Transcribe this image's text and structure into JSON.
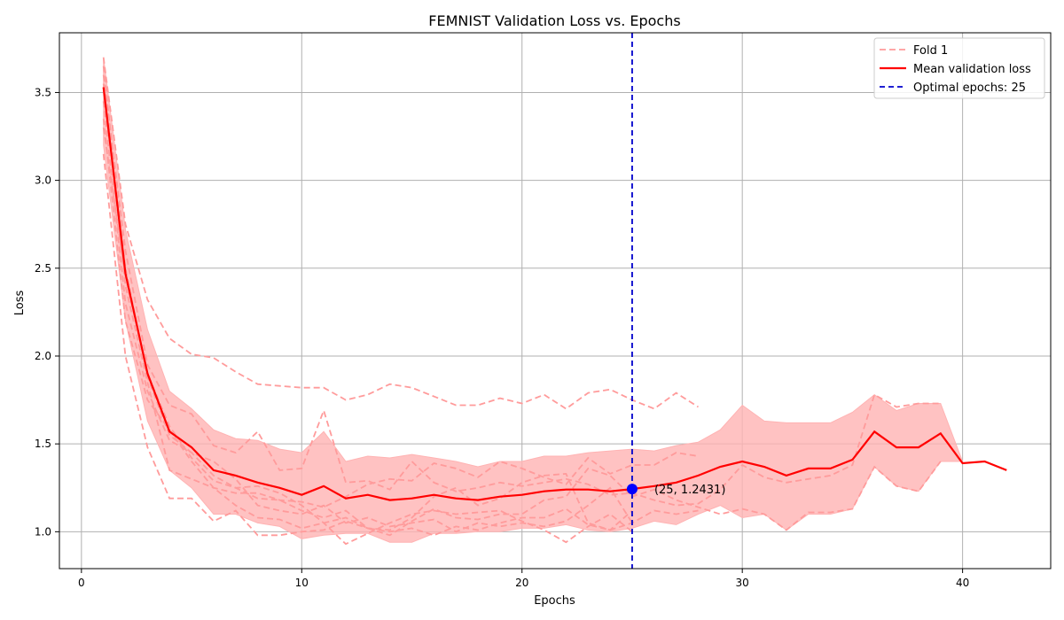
{
  "chart_data": {
    "type": "line",
    "title": "FEMNIST Validation Loss vs. Epochs",
    "xlabel": "Epochs",
    "ylabel": "Loss",
    "xlim": [
      -1,
      44
    ],
    "ylim": [
      0.79,
      3.84
    ],
    "xticks": [
      0,
      10,
      20,
      30,
      40
    ],
    "yticks": [
      1.0,
      1.5,
      2.0,
      2.5,
      3.0,
      3.5
    ],
    "xtick_labels": [
      "0",
      "10",
      "20",
      "30",
      "40"
    ],
    "ytick_labels": [
      "1.0",
      "1.5",
      "2.0",
      "2.5",
      "3.0",
      "3.5"
    ],
    "grid": true,
    "legend_position": "top-right",
    "legend": [
      {
        "label": "Fold 1",
        "style": "dashed-light"
      },
      {
        "label": "Mean validation loss",
        "style": "solid"
      },
      {
        "label": "Optimal epochs: 25",
        "style": "dashed-blue"
      }
    ],
    "colors": {
      "fold": "#ff9b9b",
      "mean": "#ff0000",
      "band": "#ffb3b3",
      "optimal": "#0000cc",
      "point": "#0000ff"
    },
    "folds": [
      {
        "x": [
          1,
          2,
          3,
          4,
          5,
          6,
          7,
          8,
          9,
          10,
          11,
          12,
          13,
          14,
          15,
          16,
          17,
          18,
          19,
          20,
          21,
          22,
          23,
          24,
          25,
          26,
          27,
          28
        ],
        "y": [
          3.7,
          2.75,
          2.32,
          2.1,
          2.01,
          1.99,
          1.91,
          1.84,
          1.83,
          1.82,
          1.82,
          1.75,
          1.78,
          1.84,
          1.82,
          1.77,
          1.72,
          1.72,
          1.76,
          1.73,
          1.78,
          1.7,
          1.79,
          1.81,
          1.75,
          1.7,
          1.79,
          1.71
        ]
      },
      {
        "x": [
          1,
          2,
          3,
          4,
          5,
          6,
          7,
          8,
          9,
          10,
          11,
          12,
          13,
          14,
          15,
          16,
          17,
          18,
          19,
          20,
          21,
          22,
          23,
          24,
          25,
          26,
          27,
          28,
          29,
          30,
          31,
          32,
          33,
          34,
          35,
          36,
          37,
          38,
          39
        ],
        "y": [
          3.6,
          2.6,
          1.95,
          1.72,
          1.67,
          1.49,
          1.45,
          1.57,
          1.35,
          1.36,
          1.69,
          1.28,
          1.29,
          1.24,
          1.4,
          1.28,
          1.23,
          1.25,
          1.28,
          1.26,
          1.28,
          1.3,
          1.27,
          1.21,
          1.22,
          1.18,
          1.15,
          1.16,
          1.24,
          1.38,
          1.31,
          1.28,
          1.3,
          1.32,
          1.38,
          1.78,
          1.71,
          1.73,
          1.73
        ]
      },
      {
        "x": [
          1,
          2,
          3,
          4,
          5,
          6,
          7,
          8,
          9,
          10,
          11,
          12,
          13,
          14,
          15,
          16,
          17,
          18,
          19,
          20,
          21,
          22,
          23,
          24,
          25,
          26,
          27,
          28
        ],
        "y": [
          3.55,
          2.4,
          1.85,
          1.35,
          1.3,
          1.25,
          1.22,
          1.22,
          1.18,
          1.17,
          1.14,
          1.2,
          1.27,
          1.3,
          1.29,
          1.39,
          1.36,
          1.31,
          1.4,
          1.36,
          1.31,
          1.27,
          1.42,
          1.33,
          1.38,
          1.38,
          1.45,
          1.43
        ]
      },
      {
        "x": [
          1,
          2,
          3,
          4,
          5,
          6,
          7,
          8,
          9,
          10,
          11,
          12,
          13,
          14,
          15,
          16,
          17,
          18,
          19,
          20,
          21,
          22,
          23,
          24,
          25,
          26,
          27,
          28,
          29,
          30,
          31,
          32,
          33,
          34,
          35,
          36,
          37,
          38,
          39
        ],
        "y": [
          3.45,
          2.3,
          1.8,
          1.52,
          1.45,
          1.32,
          1.25,
          1.19,
          1.18,
          1.12,
          1.08,
          1.12,
          1.02,
          0.98,
          1.06,
          1.13,
          1.08,
          1.07,
          1.1,
          1.1,
          1.18,
          1.2,
          1.36,
          1.32,
          1.2,
          1.24,
          1.18,
          1.14,
          1.1,
          1.13,
          1.1,
          1.01,
          1.11,
          1.11,
          1.13,
          1.37,
          1.26,
          1.23,
          1.4
        ]
      },
      {
        "x": [
          1,
          2,
          3,
          4,
          5,
          6,
          7,
          8,
          9,
          10,
          11,
          12,
          13,
          14,
          15,
          16,
          17,
          18,
          19,
          20,
          21,
          22,
          23,
          24,
          25,
          26,
          27,
          28
        ],
        "y": [
          3.35,
          2.2,
          1.75,
          1.58,
          1.4,
          1.25,
          1.15,
          1.08,
          1.07,
          1.02,
          1.05,
          1.08,
          1.02,
          1.0,
          1.02,
          0.98,
          1.03,
          1.01,
          1.05,
          1.08,
          1.08,
          1.13,
          1.04,
          1.01,
          1.05,
          1.12,
          1.1,
          1.12
        ]
      },
      {
        "x": [
          1,
          2,
          3,
          4,
          5,
          6,
          7,
          8,
          9,
          10,
          11,
          12,
          13,
          14,
          15,
          16,
          17,
          18,
          19,
          20,
          21,
          22,
          23,
          24,
          25
        ],
        "y": [
          3.3,
          2.45,
          1.9,
          1.6,
          1.42,
          1.29,
          1.25,
          1.26,
          1.22,
          1.15,
          1.05,
          0.93,
          0.99,
          1.05,
          1.1,
          1.12,
          1.1,
          1.11,
          1.12,
          1.06,
          1.01,
          0.94,
          1.03,
          1.1,
          1.0
        ]
      },
      {
        "x": [
          1,
          2,
          3,
          4,
          5,
          6,
          7,
          8,
          9,
          10,
          11,
          12,
          13,
          14,
          15,
          16,
          17,
          18,
          19,
          20,
          21,
          22,
          23,
          24,
          25
        ],
        "y": [
          3.15,
          2.0,
          1.48,
          1.19,
          1.19,
          1.06,
          1.12,
          0.98,
          0.98,
          1.0,
          1.01,
          1.06,
          1.02,
          1.01,
          1.08,
          1.2,
          1.25,
          1.15,
          1.19,
          1.28,
          1.32,
          1.33,
          1.05,
          1.01,
          1.12
        ]
      },
      {
        "x": [
          1,
          2,
          3,
          4,
          5,
          6,
          7,
          8,
          9,
          10,
          11,
          12,
          13,
          14,
          15,
          16,
          17,
          18,
          19,
          20,
          21,
          22,
          23,
          24,
          25
        ],
        "y": [
          3.65,
          2.5,
          1.88,
          1.55,
          1.45,
          1.4,
          1.3,
          1.15,
          1.12,
          1.1,
          1.15,
          1.05,
          1.08,
          1.03,
          1.05,
          1.07,
          1.0,
          1.05,
          1.03,
          1.05,
          1.03,
          1.06,
          1.15,
          1.25,
          1.05
        ]
      }
    ],
    "mean": {
      "name": "Mean validation loss",
      "x": [
        1,
        2,
        3,
        4,
        5,
        6,
        7,
        8,
        9,
        10,
        11,
        12,
        13,
        14,
        15,
        16,
        17,
        18,
        19,
        20,
        21,
        22,
        23,
        24,
        25,
        26,
        27,
        28,
        29,
        30,
        31,
        32,
        33,
        34,
        35,
        36,
        37,
        38,
        39,
        40,
        41,
        42
      ],
      "y": [
        3.53,
        2.47,
        1.9,
        1.57,
        1.48,
        1.35,
        1.32,
        1.28,
        1.25,
        1.21,
        1.26,
        1.19,
        1.21,
        1.18,
        1.19,
        1.21,
        1.19,
        1.18,
        1.2,
        1.21,
        1.23,
        1.24,
        1.24,
        1.23,
        1.243,
        1.26,
        1.28,
        1.32,
        1.37,
        1.4,
        1.37,
        1.32,
        1.36,
        1.36,
        1.41,
        1.57,
        1.48,
        1.48,
        1.56,
        1.39,
        1.4,
        1.35
      ]
    },
    "band": {
      "x": [
        1,
        2,
        3,
        4,
        5,
        6,
        7,
        8,
        9,
        10,
        11,
        12,
        13,
        14,
        15,
        16,
        17,
        18,
        19,
        20,
        21,
        22,
        23,
        24,
        25,
        26,
        27,
        28,
        29,
        30,
        31,
        32,
        33,
        34,
        35,
        36,
        37,
        38,
        39,
        40
      ],
      "upper": [
        3.7,
        2.72,
        2.15,
        1.8,
        1.7,
        1.58,
        1.53,
        1.52,
        1.47,
        1.45,
        1.57,
        1.4,
        1.43,
        1.42,
        1.44,
        1.42,
        1.4,
        1.37,
        1.4,
        1.4,
        1.43,
        1.43,
        1.45,
        1.46,
        1.47,
        1.46,
        1.49,
        1.51,
        1.58,
        1.72,
        1.63,
        1.62,
        1.62,
        1.62,
        1.68,
        1.78,
        1.69,
        1.73,
        1.73,
        1.4
      ],
      "lower": [
        3.2,
        2.2,
        1.63,
        1.35,
        1.25,
        1.1,
        1.1,
        1.05,
        1.03,
        0.96,
        0.98,
        0.99,
        0.99,
        0.94,
        0.94,
        0.99,
        0.99,
        1.0,
        1.0,
        1.02,
        1.02,
        1.04,
        1.01,
        1.0,
        1.02,
        1.06,
        1.04,
        1.1,
        1.15,
        1.08,
        1.1,
        1.01,
        1.1,
        1.1,
        1.13,
        1.37,
        1.26,
        1.23,
        1.4,
        1.4
      ]
    },
    "optimal": {
      "x": 25,
      "y": 1.2431,
      "label": "(25, 1.2431)"
    }
  }
}
